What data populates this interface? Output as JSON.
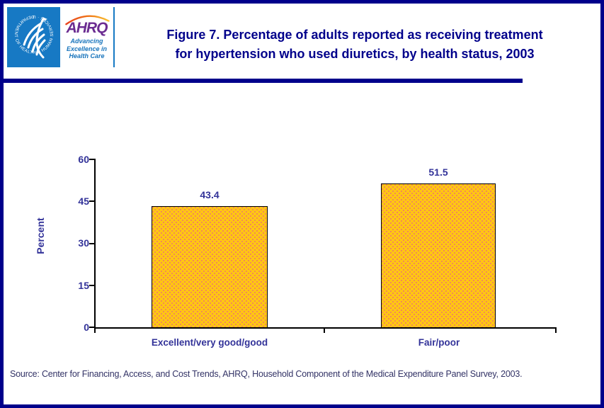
{
  "header": {
    "hhs_seal_text": "DEPARTMENT OF HEALTH & HUMAN SERVICES · USA",
    "ahrq_acronym": "AHRQ",
    "ahrq_tagline_line1": "Advancing",
    "ahrq_tagline_line2": "Excellence in",
    "ahrq_tagline_line3": "Health Care",
    "title_line1": "Figure 7. Percentage of adults reported as receiving treatment",
    "title_line2": "for hypertension who used diuretics, by health status, 2003"
  },
  "chart": {
    "ylabel": "Percent",
    "yticks": [
      "60",
      "45",
      "30",
      "15",
      "0"
    ],
    "bars": [
      {
        "label": "Excellent/very good/good",
        "value_label": "43.4"
      },
      {
        "label": "Fair/poor",
        "value_label": "51.5"
      }
    ]
  },
  "chart_data": {
    "type": "bar",
    "categories": [
      "Excellent/very good/good",
      "Fair/poor"
    ],
    "values": [
      43.4,
      51.5
    ],
    "value_labels": [
      "43.4",
      "51.5"
    ],
    "title": "Figure 7. Percentage of adults reported as receiving treatment for hypertension who used diuretics, by health status, 2003",
    "xlabel": "",
    "ylabel": "Percent",
    "ylim": [
      0,
      60
    ],
    "yticks": [
      0,
      15,
      30,
      45,
      60
    ],
    "grid": false,
    "legend": "none",
    "bar_color": "#FFC613",
    "bar_pattern": "orange-dot fill",
    "bar_border_color": "#000000"
  },
  "footer": {
    "source": "Source: Center for Financing, Access, and Cost Trends, AHRQ, Household Component of the Medical Expenditure Panel Survey, 2003."
  },
  "colors": {
    "frame_navy": "#00008B",
    "title_navy": "#00008B",
    "axis_text_blue": "#333399",
    "hhs_blue": "#1779C4",
    "ahrq_purple": "#6B2C91",
    "tagline_blue": "#1874BC"
  }
}
